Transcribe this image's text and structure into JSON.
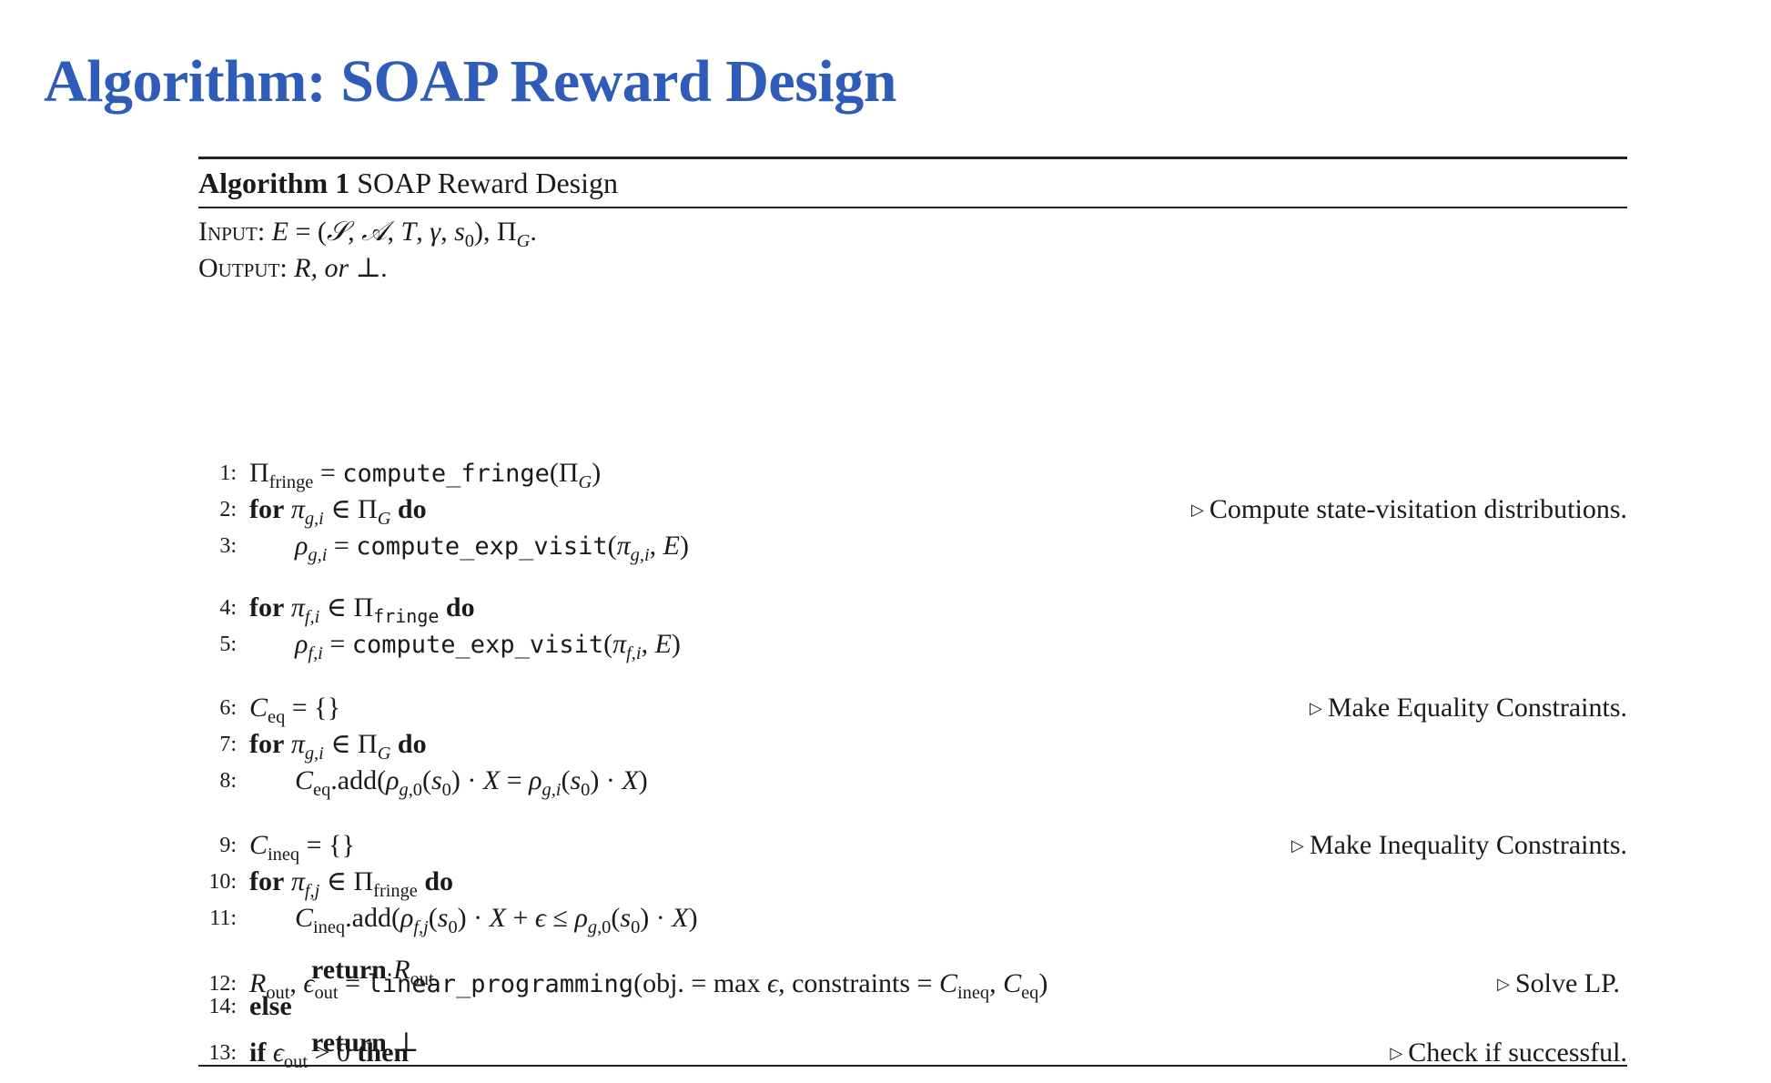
{
  "slide_title": "Algorithm: SOAP Reward Design",
  "algorithm": {
    "label": "Algorithm 1",
    "name": "SOAP Reward Design",
    "input_label": "Input:",
    "output_label": "Output:",
    "output_text": "R, or ⊥."
  },
  "lines": [
    {
      "num": "1:"
    },
    {
      "num": "2:",
      "comment": "Compute state-visitation distributions."
    },
    {
      "num": "3:"
    },
    {
      "num": "4:"
    },
    {
      "num": "5:"
    },
    {
      "num": "6:",
      "comment": "Make Equality Constraints."
    },
    {
      "num": "7:"
    },
    {
      "num": "8:"
    },
    {
      "num": "9:",
      "comment": "Make Inequality Constraints."
    },
    {
      "num": "10:"
    },
    {
      "num": "11:"
    },
    {
      "num": "12:",
      "comment": "Solve LP."
    },
    {
      "num": "13:",
      "comment": "Check if successful."
    },
    {
      "num": "14:"
    }
  ]
}
